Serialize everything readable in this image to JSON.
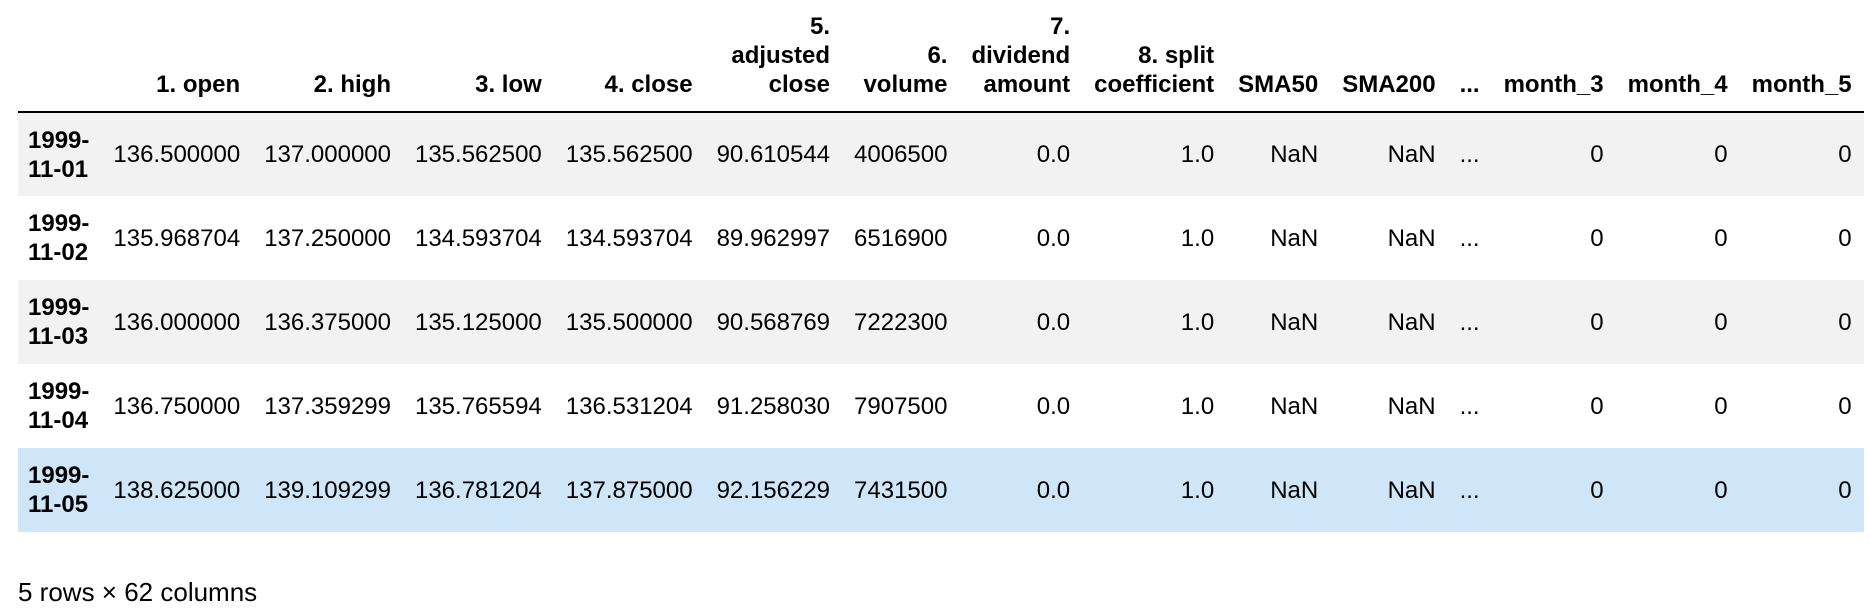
{
  "table": {
    "columns": [
      "",
      "1. open",
      "2. high",
      "3. low",
      "4. close",
      "5.\nadjusted\nclose",
      "6.\nvolume",
      "7.\ndividend\namount",
      "8. split\ncoefficient",
      "SMA50",
      "SMA200",
      "...",
      "month_3",
      "month_4",
      "month_5"
    ],
    "rows": [
      {
        "index": "1999-\n11-01",
        "values": [
          "136.500000",
          "137.000000",
          "135.562500",
          "135.562500",
          "90.610544",
          "4006500",
          "0.0",
          "1.0",
          "NaN",
          "NaN",
          "...",
          "0",
          "0",
          "0"
        ]
      },
      {
        "index": "1999-\n11-02",
        "values": [
          "135.968704",
          "137.250000",
          "134.593704",
          "134.593704",
          "89.962997",
          "6516900",
          "0.0",
          "1.0",
          "NaN",
          "NaN",
          "...",
          "0",
          "0",
          "0"
        ]
      },
      {
        "index": "1999-\n11-03",
        "values": [
          "136.000000",
          "136.375000",
          "135.125000",
          "135.500000",
          "90.568769",
          "7222300",
          "0.0",
          "1.0",
          "NaN",
          "NaN",
          "...",
          "0",
          "0",
          "0"
        ]
      },
      {
        "index": "1999-\n11-04",
        "values": [
          "136.750000",
          "137.359299",
          "135.765594",
          "136.531204",
          "91.258030",
          "7907500",
          "0.0",
          "1.0",
          "NaN",
          "NaN",
          "...",
          "0",
          "0",
          "0"
        ]
      },
      {
        "index": "1999-\n11-05",
        "values": [
          "138.625000",
          "139.109299",
          "136.781204",
          "137.875000",
          "92.156229",
          "7431500",
          "0.0",
          "1.0",
          "NaN",
          "NaN",
          "...",
          "0",
          "0",
          "0"
        ]
      }
    ],
    "highlighted_row": 4
  },
  "shape_text": "5 rows × 62 columns",
  "colors": {
    "row_stripe": "#f2f2f2",
    "row_hover": "#cfe5f8",
    "header_rule": "#000000"
  }
}
